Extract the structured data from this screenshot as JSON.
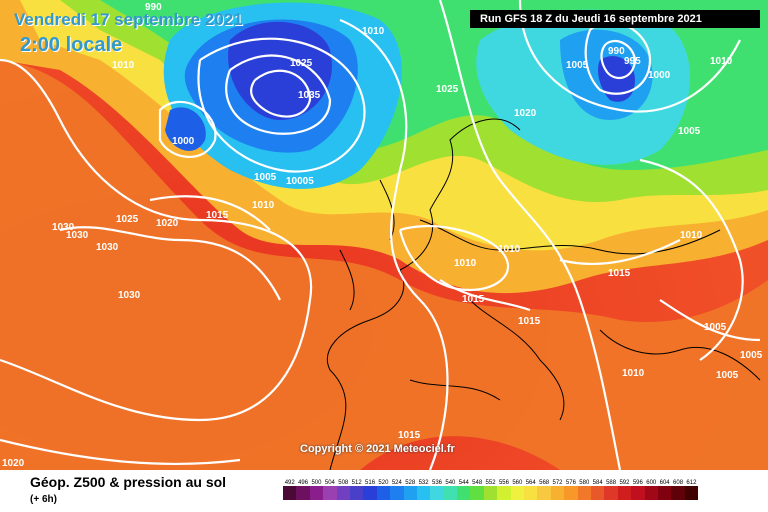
{
  "title": {
    "date": "Vendredi 17 septembre 2021",
    "time": "2:00 locale"
  },
  "run": "Run GFS 18 Z du Jeudi 16 septembre 2021",
  "copyright": "Copyright © 2021 Meteociel.fr",
  "legend": {
    "title": "Géop. Z500 & pression au sol",
    "subtitle": "(+ 6h)",
    "values": [
      "492",
      "496",
      "500",
      "504",
      "508",
      "512",
      "516",
      "520",
      "524",
      "528",
      "532",
      "536",
      "540",
      "544",
      "548",
      "552",
      "556",
      "560",
      "564",
      "568",
      "572",
      "576",
      "580",
      "584",
      "588",
      "592",
      "596",
      "600",
      "604",
      "608",
      "612"
    ],
    "colors": [
      "#4b0a36",
      "#6e1060",
      "#8a1e8c",
      "#9a40b0",
      "#7040c0",
      "#4a3fc8",
      "#2a3fd8",
      "#1e5fe8",
      "#1e80f0",
      "#20a0f0",
      "#28c0f0",
      "#40d8e0",
      "#40e0b0",
      "#40e070",
      "#60e040",
      "#a0e030",
      "#d0f030",
      "#f0f040",
      "#f8e040",
      "#f8c840",
      "#f8b030",
      "#f89828",
      "#f07828",
      "#e85828",
      "#e03828",
      "#d01e1e",
      "#c01020",
      "#a00818",
      "#800010",
      "#600008",
      "#400000"
    ]
  },
  "isobars": [
    "990",
    "1010",
    "1025",
    "1035",
    "1010",
    "1000",
    "1005",
    "10005",
    "1010",
    "1025",
    "1020",
    "1015",
    "1030",
    "1030",
    "1030",
    "1030",
    "1025",
    "1020",
    "1010",
    "1005",
    "990",
    "995",
    "1000",
    "1005",
    "1010",
    "1010",
    "1015",
    "1015",
    "1015",
    "1005",
    "1005",
    "1005",
    "1010",
    "1015",
    "1010",
    "1020"
  ]
}
